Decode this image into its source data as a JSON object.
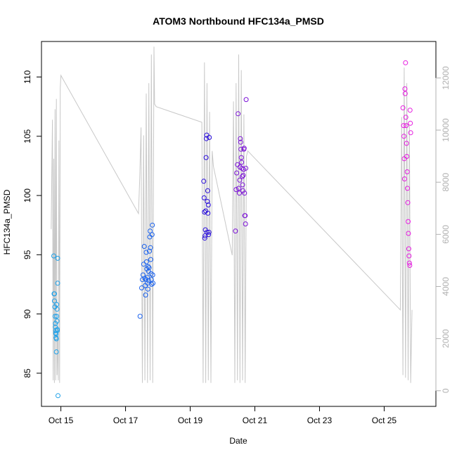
{
  "chart_data": {
    "type": "scatter",
    "title": "ATOM3 Northbound HFC134a_PMSD",
    "xlabel": "Date",
    "ylabel": "HFC134a_PMSD",
    "x_unit": "day of October",
    "xlim": [
      14.4,
      26.6
    ],
    "ylim": [
      82.2,
      113.0
    ],
    "x_ticks": [
      15,
      17,
      19,
      21,
      23,
      25
    ],
    "x_tick_labels": [
      "Oct 15",
      "Oct 17",
      "Oct 19",
      "Oct 21",
      "Oct 23",
      "Oct 25"
    ],
    "y_ticks": [
      85,
      90,
      95,
      100,
      105,
      110
    ],
    "y_tick_labels": [
      "85",
      "90",
      "95",
      "100",
      "105",
      "110"
    ],
    "right_axis": {
      "ticks": [
        0,
        2000,
        4000,
        6000,
        8000,
        10000,
        12000
      ],
      "tick_labels": [
        "0",
        "2000",
        "4000",
        "6000",
        "8000",
        "10000",
        "12000"
      ],
      "lim": [
        -600,
        13400
      ],
      "color": "#b0b0b0"
    },
    "grid": false,
    "legend": "none",
    "point_colors": [
      "#00aaff",
      "#0066ff",
      "#2200ee",
      "#8800dd",
      "#ee00dd"
    ],
    "line_color": "#c8c8c8",
    "series": [
      {
        "color": "#1ea0e8",
        "x": [
          14.78,
          14.79,
          14.8,
          14.8,
          14.81,
          14.82,
          14.83,
          14.83,
          14.84,
          14.84,
          14.85,
          14.85,
          14.86,
          14.86,
          14.87,
          14.87,
          14.88,
          14.88,
          14.89,
          14.89,
          14.9,
          14.9,
          14.91
        ],
        "y": [
          94.9,
          91.7,
          91.7,
          91.1,
          90.6,
          89.8,
          89.2,
          88.9,
          88.6,
          88.4,
          88.3,
          88.0,
          86.8,
          87.9,
          89.8,
          90.8,
          90.4,
          89.4,
          88.7,
          88.6,
          92.6,
          94.7,
          83.1
        ]
      },
      {
        "color": "#1a62ee",
        "x": [
          17.45,
          17.5,
          17.52,
          17.54,
          17.56,
          17.58,
          17.6,
          17.61,
          17.62,
          17.63,
          17.64,
          17.65,
          17.66,
          17.67,
          17.68,
          17.69,
          17.7,
          17.71,
          17.72,
          17.73,
          17.74,
          17.75,
          17.76,
          17.77,
          17.78,
          17.79,
          17.8,
          17.81,
          17.82,
          17.83,
          17.84,
          17.85
        ],
        "y": [
          89.8,
          92.2,
          92.9,
          93.3,
          94.2,
          95.7,
          93.0,
          92.4,
          91.6,
          92.9,
          95.2,
          94.4,
          93.8,
          93.1,
          92.6,
          92.1,
          94.0,
          93.6,
          92.8,
          93.9,
          95.3,
          96.5,
          97.0,
          95.6,
          94.6,
          93.4,
          92.9,
          92.5,
          96.7,
          97.5,
          93.3,
          92.6
        ]
      },
      {
        "color": "#2a0edc",
        "x": [
          19.42,
          19.43,
          19.44,
          19.45,
          19.46,
          19.47,
          19.48,
          19.49,
          19.5,
          19.51,
          19.52,
          19.53,
          19.54,
          19.55,
          19.56,
          19.57,
          19.58,
          19.59
        ],
        "y": [
          101.2,
          99.8,
          98.6,
          96.4,
          96.6,
          97.1,
          98.7,
          103.2,
          104.8,
          105.1,
          96.9,
          99.5,
          100.4,
          98.5,
          99.2,
          96.7,
          96.9,
          104.9
        ]
      },
      {
        "color": "#7d14d8",
        "x": [
          20.4,
          20.42,
          20.44,
          20.46,
          20.48,
          20.5,
          20.52,
          20.53,
          20.54,
          20.55,
          20.56,
          20.57,
          20.58,
          20.59,
          20.6,
          20.61,
          20.62,
          20.63,
          20.64,
          20.65,
          20.66,
          20.67,
          20.68,
          20.69,
          20.7,
          20.71,
          20.72,
          20.73
        ],
        "y": [
          97.0,
          100.5,
          101.9,
          102.6,
          106.9,
          100.6,
          100.2,
          101.3,
          102.4,
          104.8,
          104.5,
          103.9,
          103.2,
          102.8,
          102.3,
          101.6,
          100.9,
          100.4,
          101.7,
          102.2,
          103.9,
          104.0,
          100.2,
          98.3,
          98.3,
          97.6,
          102.3,
          108.1
        ]
      },
      {
        "color": "#e61ce0",
        "x": [
          25.58,
          25.6,
          25.61,
          25.62,
          25.63,
          25.64,
          25.65,
          25.66,
          25.67,
          25.68,
          25.69,
          25.7,
          25.71,
          25.72,
          25.73,
          25.74,
          25.75,
          25.76,
          25.77,
          25.78,
          25.79,
          25.8,
          25.81,
          25.82
        ],
        "y": [
          107.4,
          105.9,
          105.0,
          103.1,
          101.4,
          109.0,
          108.6,
          111.2,
          106.6,
          105.9,
          104.4,
          103.3,
          102.0,
          100.6,
          99.4,
          97.8,
          96.8,
          95.5,
          94.9,
          94.3,
          94.1,
          107.2,
          106.1,
          105.3
        ]
      }
    ],
    "line_series": {
      "axis": "right",
      "color": "#c8c8c8",
      "x": [
        14.7,
        14.74,
        14.76,
        14.78,
        14.8,
        14.82,
        14.84,
        14.86,
        14.88,
        14.9,
        14.92,
        14.94,
        14.96,
        14.98,
        15.0,
        17.4,
        17.44,
        17.48,
        17.52,
        17.56,
        17.6,
        17.64,
        17.68,
        17.72,
        17.76,
        17.8,
        17.84,
        17.88,
        17.9,
        17.95,
        19.36,
        19.4,
        19.44,
        19.48,
        19.52,
        19.56,
        19.6,
        19.64,
        19.68,
        19.72,
        20.3,
        20.34,
        20.38,
        20.42,
        20.46,
        20.5,
        20.54,
        20.58,
        20.62,
        20.66,
        20.7,
        20.74,
        20.78,
        25.5,
        25.54,
        25.58,
        25.62,
        25.66,
        25.7,
        25.74,
        25.78,
        25.82,
        25.86
      ],
      "y": [
        6200,
        10400,
        400,
        8900,
        300,
        10800,
        400,
        11200,
        600,
        2100,
        400,
        9600,
        300,
        11600,
        12100,
        6800,
        8200,
        10100,
        300,
        9800,
        400,
        11400,
        300,
        11800,
        400,
        12900,
        300,
        13200,
        11000,
        10900,
        10300,
        300,
        12600,
        300,
        11800,
        400,
        10700,
        300,
        9200,
        8600,
        5200,
        11100,
        300,
        11800,
        400,
        12900,
        300,
        12300,
        400,
        10600,
        300,
        9000,
        9200,
        3100,
        10500,
        600,
        12400,
        500,
        11800,
        400,
        10200,
        300,
        3100
      ]
    }
  }
}
